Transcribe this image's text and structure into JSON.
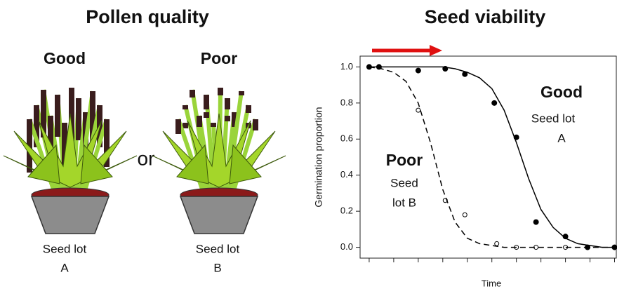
{
  "left_panel": {
    "title": "Pollen quality",
    "or_label": "or",
    "plants": [
      {
        "label": "Good",
        "caption": [
          "Seed lot",
          "A"
        ]
      },
      {
        "label": "Poor",
        "caption": [
          "Seed lot",
          "B"
        ]
      }
    ]
  },
  "chart_data": {
    "type": "scatter",
    "title": "Seed viability",
    "x_label": "Time",
    "y_label": "Germination proportion",
    "xlim": [
      -0.37,
      10.1
    ],
    "xticks": [
      0,
      1,
      2,
      3,
      4,
      5,
      6,
      7,
      8,
      9,
      10
    ],
    "ylim": [
      -0.06,
      1.06
    ],
    "yticks": [
      {
        "value": 0,
        "label": "0.0"
      },
      0.2,
      0.4,
      0.6,
      0.8,
      {
        "value": 1,
        "label": "1.0"
      }
    ],
    "series": [
      {
        "style": "markers",
        "marker": "filled",
        "color": "#000000",
        "x": [
          0,
          0.4,
          2,
          3.1,
          3.9,
          5.1,
          6,
          6.8,
          8,
          8.9,
          10
        ],
        "values": [
          1.0,
          1.0,
          0.98,
          0.99,
          0.96,
          0.8,
          0.61,
          0.14,
          0.06,
          0.0,
          0.0
        ]
      },
      {
        "style": "markers",
        "marker": "open",
        "color": "#000000",
        "x": [
          2,
          3.1,
          3.9,
          5.2,
          6,
          6.8,
          8
        ],
        "values": [
          0.76,
          0.26,
          0.18,
          0.02,
          0.0,
          0.0,
          0.0
        ]
      },
      {
        "style": "line",
        "dash": false,
        "color": "#000000",
        "x": [
          0,
          0.5,
          1,
          1.5,
          2,
          2.5,
          3,
          3.5,
          4,
          4.5,
          5,
          5.5,
          6,
          6.5,
          7,
          7.5,
          8,
          8.5,
          9,
          9.5,
          10
        ],
        "values": [
          1.0,
          1.0,
          1.0,
          1.0,
          1.0,
          1.0,
          1.0,
          0.99,
          0.97,
          0.94,
          0.88,
          0.76,
          0.58,
          0.38,
          0.21,
          0.11,
          0.05,
          0.02,
          0.01,
          0.0,
          0.0
        ]
      },
      {
        "style": "line",
        "dash": true,
        "color": "#000000",
        "x": [
          0,
          0.5,
          1,
          1.5,
          2,
          2.5,
          3,
          3.5,
          4,
          4.5,
          5,
          5.5,
          6,
          6.5,
          7,
          7.5,
          8,
          8.5,
          9,
          9.5,
          10
        ],
        "values": [
          1.0,
          0.99,
          0.97,
          0.92,
          0.8,
          0.58,
          0.32,
          0.14,
          0.05,
          0.02,
          0.01,
          0.0,
          0.0,
          0.0,
          0.0,
          0.0,
          0.0,
          0.0,
          0.0,
          0.0,
          0.0
        ]
      }
    ],
    "annotations": [
      {
        "bold": "Good",
        "lines": [
          "Seed lot",
          "A"
        ]
      },
      {
        "bold": "Poor",
        "lines": [
          "Seed",
          "lot B"
        ]
      }
    ]
  }
}
